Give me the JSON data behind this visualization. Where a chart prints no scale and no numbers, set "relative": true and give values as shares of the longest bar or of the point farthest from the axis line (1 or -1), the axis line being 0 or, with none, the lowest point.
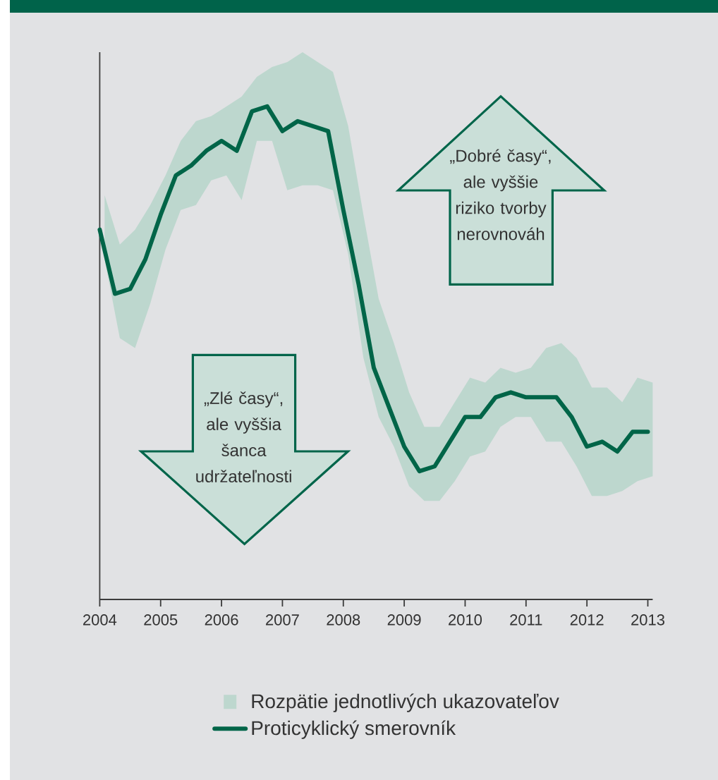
{
  "chart_data": {
    "type": "line",
    "relative": true,
    "x": [
      2004,
      2004.25,
      2004.5,
      2004.75,
      2005,
      2005.25,
      2005.5,
      2005.75,
      2006,
      2006.25,
      2006.5,
      2006.75,
      2007,
      2007.25,
      2007.5,
      2007.75,
      2008,
      2008.25,
      2008.5,
      2008.75,
      2009,
      2009.25,
      2009.5,
      2009.75,
      2010,
      2010.25,
      2010.5,
      2010.75,
      2011,
      2011.25,
      2011.5,
      2011.75,
      2012,
      2012.25,
      2012.5,
      2012.75,
      2013
    ],
    "xlim": [
      2004,
      2013.08
    ],
    "xticks": [
      2004,
      2005,
      2006,
      2007,
      2008,
      2009,
      2010,
      2011,
      2012,
      2013
    ],
    "series": [
      {
        "name": "Rozpätie jednotlivých ukazovateľov",
        "color": "#bdd7ce",
        "x": [
          2004.08,
          2004.33,
          2004.58,
          2004.83,
          2005.08,
          2005.33,
          2005.58,
          2005.83,
          2006.08,
          2006.33,
          2006.58,
          2006.83,
          2007.08,
          2007.33,
          2007.58,
          2007.83,
          2008.08,
          2008.33,
          2008.58,
          2008.83,
          2009.08,
          2009.33,
          2009.58,
          2009.83,
          2010.08,
          2010.33,
          2010.58,
          2010.83,
          2011.08,
          2011.33,
          2011.58,
          2011.83,
          2012.08,
          2012.33,
          2012.58,
          2012.83,
          2013.08
        ],
        "values": [
          null,
          null,
          null,
          null,
          null,
          null,
          null,
          null,
          null,
          null,
          null,
          null,
          null,
          null,
          null,
          null,
          null,
          null,
          null,
          null,
          null,
          null,
          null,
          null,
          null,
          null,
          null,
          null,
          null,
          null,
          null,
          null,
          null,
          null,
          null,
          null,
          null
        ],
        "upper": [
          0.82,
          0.72,
          0.75,
          0.8,
          0.86,
          0.93,
          0.97,
          0.98,
          1.0,
          1.02,
          1.06,
          1.08,
          1.09,
          1.11,
          1.09,
          1.07,
          0.96,
          0.78,
          0.61,
          0.52,
          0.42,
          0.35,
          0.35,
          0.4,
          0.45,
          0.44,
          0.47,
          0.46,
          0.47,
          0.51,
          0.52,
          0.49,
          0.43,
          0.43,
          0.4,
          0.45,
          0.44
        ],
        "lower": [
          0.69,
          0.53,
          0.51,
          0.6,
          0.71,
          0.79,
          0.8,
          0.85,
          0.86,
          0.81,
          0.93,
          0.93,
          0.83,
          0.84,
          0.84,
          0.83,
          0.7,
          0.49,
          0.37,
          0.31,
          0.23,
          0.2,
          0.2,
          0.24,
          0.29,
          0.3,
          0.35,
          0.37,
          0.37,
          0.32,
          0.32,
          0.27,
          0.21,
          0.21,
          0.22,
          0.24,
          0.25
        ]
      },
      {
        "name": "Proticyklický smerovník",
        "type": "line",
        "color": "#006548",
        "values": [
          0.75,
          0.62,
          0.63,
          0.69,
          0.78,
          0.86,
          0.88,
          0.91,
          0.93,
          0.91,
          0.99,
          1.0,
          0.95,
          0.97,
          0.96,
          0.95,
          0.79,
          0.64,
          0.47,
          0.39,
          0.31,
          0.26,
          0.27,
          0.32,
          0.37,
          0.37,
          0.41,
          0.42,
          0.41,
          0.41,
          0.41,
          0.37,
          0.31,
          0.32,
          0.3,
          0.34,
          0.34
        ]
      }
    ],
    "legend": "bottom",
    "annotations": [
      "„Dobré časy“, ale vyššie riziko tvorby nerovnováh",
      "„Zlé časy“, ale vyššia šanca udržateľnosti"
    ]
  }
}
